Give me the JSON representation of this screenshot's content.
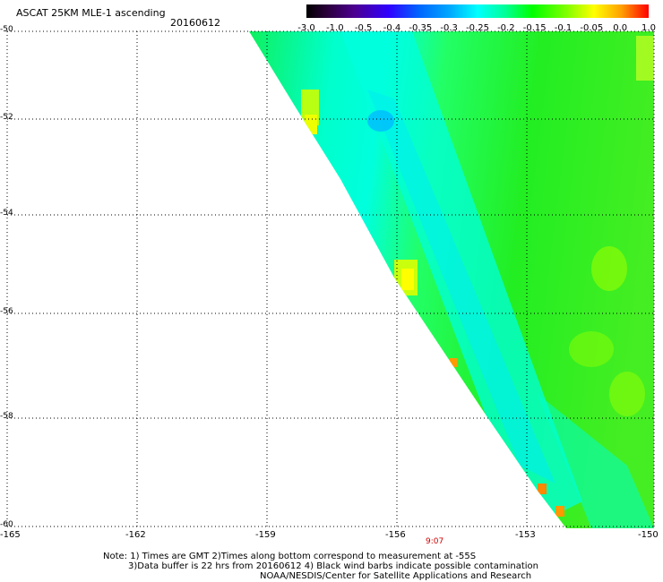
{
  "title": "ASCAT 25KM MLE-1 ascending",
  "date": "20160612",
  "colorbar": {
    "labels": [
      "-3.0",
      "-1.0",
      "-0.5",
      "-0.4",
      "-0.35",
      "-0.3",
      "-0.25",
      "-0.2",
      "-0.15",
      "-0.1",
      "-0.05",
      "0.0",
      "1.0"
    ]
  },
  "lat_labels": [
    "-50",
    "-52",
    "-54",
    "-56",
    "-58",
    "-60"
  ],
  "lon_labels": [
    "-165",
    "-162",
    "-159",
    "-156",
    "-153",
    "-150"
  ],
  "time_label": "9:07",
  "notes": {
    "line1": "Note: 1) Times are GMT 2)Times along bottom correspond to measurement at -55S",
    "line2": "3)Data buffer is 22 hrs from 20160612 4) Black wind barbs indicate possible contamination",
    "line3": "NOAA/NESDIS/Center for Satellite Applications and Research"
  }
}
